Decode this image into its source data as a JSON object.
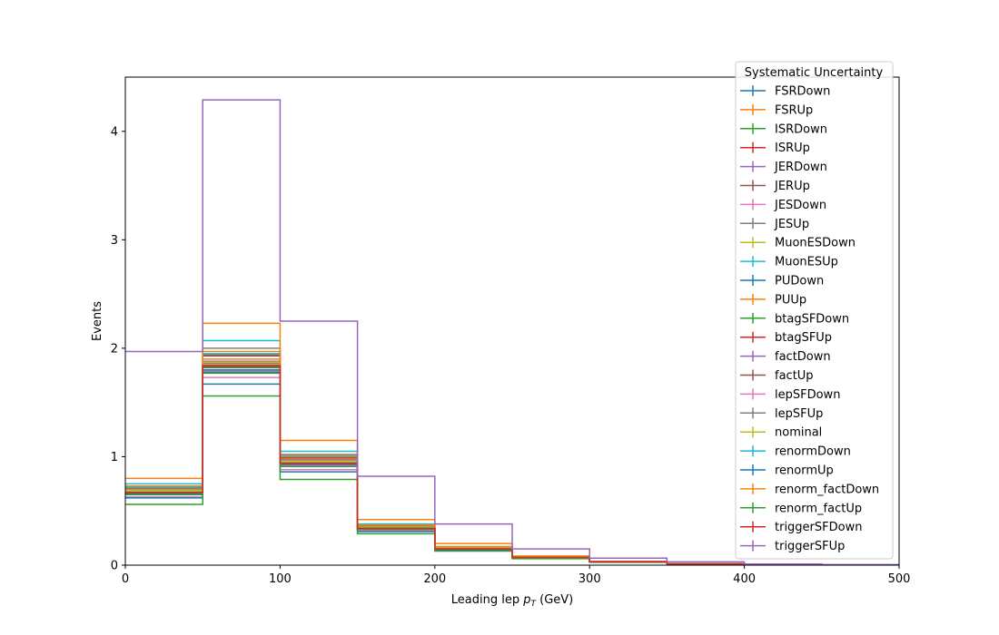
{
  "chart_data": {
    "type": "histogram-step",
    "xlabel": "Leading lep p_T (GeV)",
    "xlabel_parts": {
      "pre": "Leading lep ",
      "sym": "p",
      "sub": "T",
      "post": " (GeV)"
    },
    "ylabel": "Events",
    "xlim": [
      0,
      500
    ],
    "ylim": [
      0,
      4.5
    ],
    "x_ticks": [
      "0",
      "100",
      "200",
      "300",
      "400",
      "500"
    ],
    "y_ticks": [
      "0",
      "1",
      "2",
      "3",
      "4"
    ],
    "bin_edges": [
      0,
      50,
      100,
      150,
      200,
      250,
      300,
      350,
      400,
      450,
      500
    ],
    "legend_title": "Systematic Uncertainty",
    "legend_location": "upper-right",
    "series": [
      {
        "name": "FSRDown",
        "color": "#1f77b4",
        "values": [
          0.66,
          1.78,
          0.92,
          0.33,
          0.15,
          0.07,
          0.03,
          0.012,
          0.005,
          0.002
        ]
      },
      {
        "name": "FSRUp",
        "color": "#ff7f0e",
        "values": [
          0.7,
          1.9,
          0.98,
          0.36,
          0.16,
          0.075,
          0.032,
          0.013,
          0.005,
          0.002
        ]
      },
      {
        "name": "ISRDown",
        "color": "#2ca02c",
        "values": [
          0.67,
          1.82,
          0.94,
          0.34,
          0.15,
          0.072,
          0.031,
          0.012,
          0.005,
          0.002
        ]
      },
      {
        "name": "ISRUp",
        "color": "#d62728",
        "values": [
          0.68,
          1.86,
          0.95,
          0.35,
          0.16,
          0.073,
          0.031,
          0.012,
          0.005,
          0.002
        ]
      },
      {
        "name": "JERDown",
        "color": "#9467bd",
        "values": [
          0.69,
          1.86,
          0.96,
          0.35,
          0.16,
          0.074,
          0.031,
          0.012,
          0.005,
          0.002
        ]
      },
      {
        "name": "JERUp",
        "color": "#8c564b",
        "values": [
          0.69,
          1.87,
          0.96,
          0.35,
          0.16,
          0.074,
          0.031,
          0.012,
          0.005,
          0.002
        ]
      },
      {
        "name": "JESDown",
        "color": "#e377c2",
        "values": [
          0.63,
          1.73,
          0.88,
          0.32,
          0.14,
          0.068,
          0.029,
          0.011,
          0.005,
          0.002
        ]
      },
      {
        "name": "JESUp",
        "color": "#7f7f7f",
        "values": [
          0.72,
          2.0,
          1.02,
          0.37,
          0.17,
          0.078,
          0.033,
          0.013,
          0.005,
          0.002
        ]
      },
      {
        "name": "MuonESDown",
        "color": "#bcbd22",
        "values": [
          0.68,
          1.85,
          0.95,
          0.35,
          0.16,
          0.073,
          0.031,
          0.012,
          0.005,
          0.002
        ]
      },
      {
        "name": "MuonESUp",
        "color": "#17becf",
        "values": [
          0.75,
          2.07,
          1.05,
          0.38,
          0.17,
          0.08,
          0.034,
          0.013,
          0.005,
          0.002
        ]
      },
      {
        "name": "PUDown",
        "color": "#1f77b4",
        "values": [
          0.62,
          1.67,
          0.86,
          0.31,
          0.14,
          0.066,
          0.028,
          0.011,
          0.004,
          0.002
        ]
      },
      {
        "name": "PUUp",
        "color": "#ff7f0e",
        "values": [
          0.8,
          2.23,
          1.15,
          0.42,
          0.2,
          0.085,
          0.036,
          0.014,
          0.006,
          0.002
        ]
      },
      {
        "name": "btagSFDown",
        "color": "#2ca02c",
        "values": [
          0.56,
          1.56,
          0.79,
          0.29,
          0.13,
          0.06,
          0.026,
          0.01,
          0.004,
          0.002
        ]
      },
      {
        "name": "btagSFUp",
        "color": "#d62728",
        "values": [
          0.71,
          1.93,
          0.99,
          0.36,
          0.16,
          0.076,
          0.032,
          0.013,
          0.005,
          0.002
        ]
      },
      {
        "name": "factDown",
        "color": "#9467bd",
        "values": [
          0.69,
          1.88,
          0.97,
          0.35,
          0.16,
          0.074,
          0.031,
          0.012,
          0.005,
          0.002
        ]
      },
      {
        "name": "factUp",
        "color": "#8c564b",
        "values": [
          0.67,
          1.83,
          0.94,
          0.34,
          0.15,
          0.072,
          0.031,
          0.012,
          0.005,
          0.002
        ]
      },
      {
        "name": "lepSFDown",
        "color": "#e377c2",
        "values": [
          0.66,
          1.79,
          0.92,
          0.34,
          0.15,
          0.071,
          0.03,
          0.012,
          0.005,
          0.002
        ]
      },
      {
        "name": "lepSFUp",
        "color": "#7f7f7f",
        "values": [
          0.71,
          1.94,
          1.0,
          0.36,
          0.16,
          0.076,
          0.032,
          0.013,
          0.005,
          0.002
        ]
      },
      {
        "name": "nominal",
        "color": "#bcbd22",
        "values": [
          0.69,
          1.87,
          0.96,
          0.35,
          0.16,
          0.074,
          0.031,
          0.012,
          0.005,
          0.002
        ]
      },
      {
        "name": "renormDown",
        "color": "#17becf",
        "values": [
          0.72,
          1.95,
          1.0,
          0.37,
          0.17,
          0.077,
          0.033,
          0.013,
          0.005,
          0.002
        ]
      },
      {
        "name": "renormUp",
        "color": "#1f77b4",
        "values": [
          0.66,
          1.8,
          0.93,
          0.34,
          0.15,
          0.071,
          0.03,
          0.012,
          0.005,
          0.002
        ]
      },
      {
        "name": "renorm_factDown",
        "color": "#ff7f0e",
        "values": [
          0.73,
          1.97,
          1.01,
          0.37,
          0.17,
          0.077,
          0.033,
          0.013,
          0.005,
          0.002
        ]
      },
      {
        "name": "renorm_factUp",
        "color": "#2ca02c",
        "values": [
          0.65,
          1.77,
          0.91,
          0.33,
          0.15,
          0.07,
          0.03,
          0.012,
          0.005,
          0.002
        ]
      },
      {
        "name": "triggerSFDown",
        "color": "#d62728",
        "values": [
          0.67,
          1.84,
          0.94,
          0.34,
          0.15,
          0.072,
          0.031,
          0.012,
          0.005,
          0.002
        ]
      },
      {
        "name": "triggerSFUp",
        "color": "#9467bd",
        "values": [
          1.97,
          4.29,
          2.25,
          0.82,
          0.38,
          0.15,
          0.065,
          0.03,
          0.01,
          0.005
        ]
      }
    ]
  }
}
